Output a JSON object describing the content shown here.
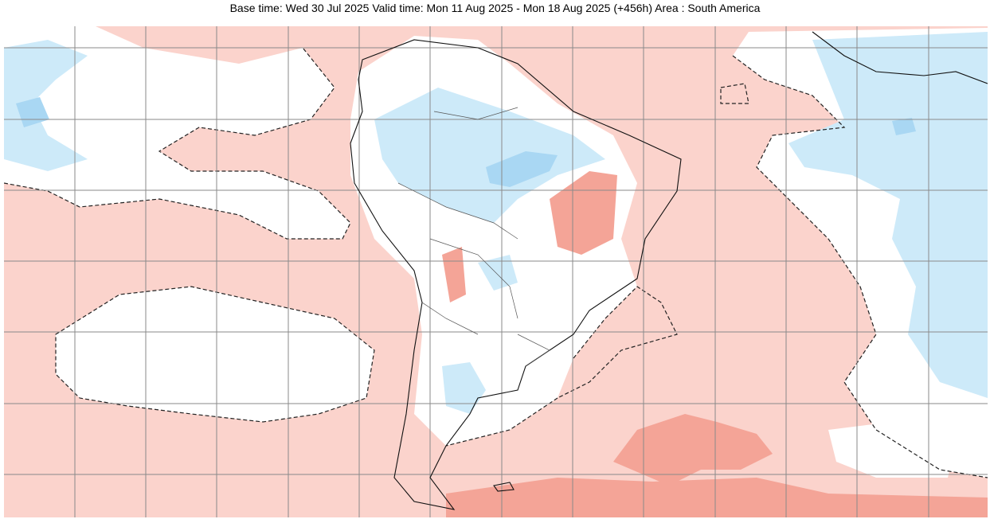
{
  "title": "Base time: Wed 30 Jul 2025 Valid time: Mon 11 Aug 2025 - Mon 18 Aug 2025 (+456h) Area : South America"
}
